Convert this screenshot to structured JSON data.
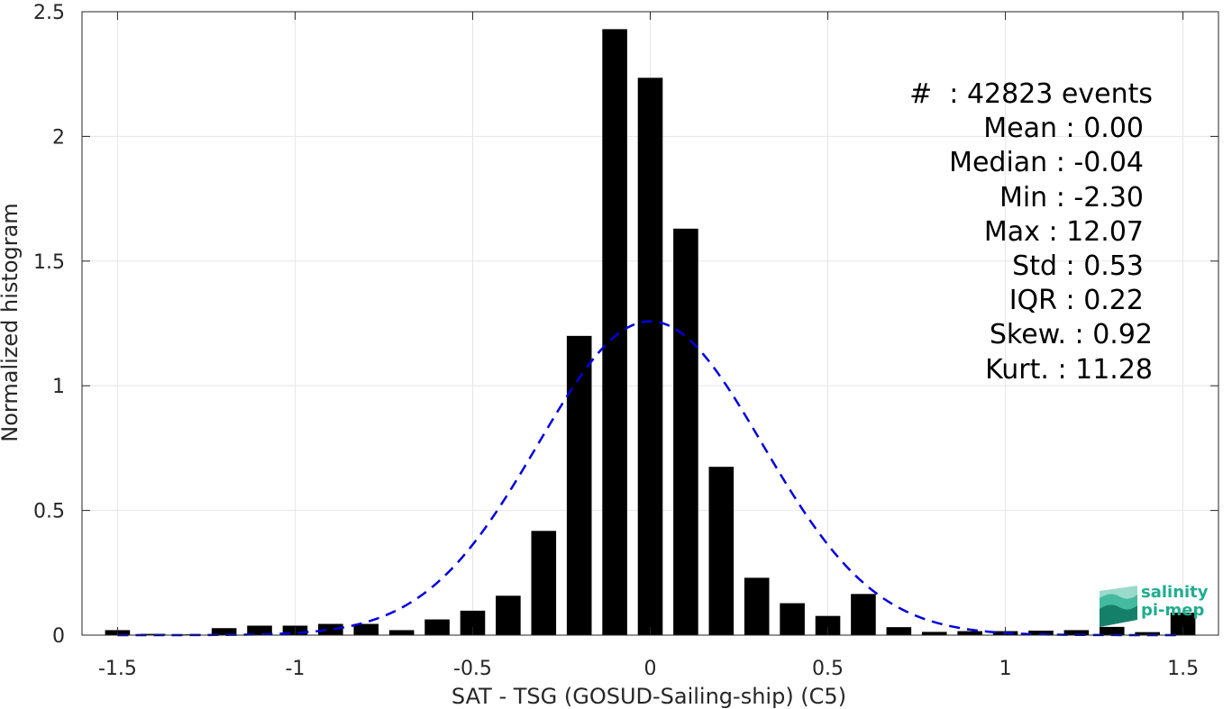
{
  "chart_data": {
    "type": "bar",
    "xlabel": "SAT - TSG (GOSUD-Sailing-ship) (C5)",
    "ylabel": "Normalized histogram",
    "xlim": [
      -1.6,
      1.6
    ],
    "ylim": [
      0,
      2.5
    ],
    "xticks": [
      -1.5,
      -1,
      -0.5,
      0,
      0.5,
      1,
      1.5
    ],
    "xtick_labels": [
      "-1.5",
      "-1",
      "-0.5",
      "0",
      "0.5",
      "1",
      "1.5"
    ],
    "yticks": [
      0,
      0.5,
      1,
      1.5,
      2,
      2.5
    ],
    "ytick_labels": [
      "0",
      "0.5",
      "1",
      "1.5",
      "2",
      "2.5"
    ],
    "grid": true,
    "bin_width": 0.1,
    "bar_color": "#000000",
    "fit_color": "#0000dd",
    "bins": [
      {
        "x": -1.5,
        "y": 0.02
      },
      {
        "x": -1.4,
        "y": 0.005
      },
      {
        "x": -1.3,
        "y": 0.003
      },
      {
        "x": -1.2,
        "y": 0.028
      },
      {
        "x": -1.1,
        "y": 0.038
      },
      {
        "x": -1.0,
        "y": 0.038
      },
      {
        "x": -0.9,
        "y": 0.045
      },
      {
        "x": -0.8,
        "y": 0.045
      },
      {
        "x": -0.7,
        "y": 0.02
      },
      {
        "x": -0.6,
        "y": 0.063
      },
      {
        "x": -0.5,
        "y": 0.098
      },
      {
        "x": -0.4,
        "y": 0.158
      },
      {
        "x": -0.3,
        "y": 0.418
      },
      {
        "x": -0.2,
        "y": 1.2
      },
      {
        "x": -0.1,
        "y": 2.43
      },
      {
        "x": 0.0,
        "y": 2.235
      },
      {
        "x": 0.1,
        "y": 1.63
      },
      {
        "x": 0.2,
        "y": 0.675
      },
      {
        "x": 0.3,
        "y": 0.23
      },
      {
        "x": 0.4,
        "y": 0.128
      },
      {
        "x": 0.5,
        "y": 0.077
      },
      {
        "x": 0.6,
        "y": 0.165
      },
      {
        "x": 0.7,
        "y": 0.032
      },
      {
        "x": 0.8,
        "y": 0.013
      },
      {
        "x": 0.9,
        "y": 0.016
      },
      {
        "x": 1.0,
        "y": 0.016
      },
      {
        "x": 1.1,
        "y": 0.018
      },
      {
        "x": 1.2,
        "y": 0.02
      },
      {
        "x": 1.3,
        "y": 0.033
      },
      {
        "x": 1.4,
        "y": 0.012
      },
      {
        "x": 1.5,
        "y": 0.09
      }
    ],
    "fit": {
      "type": "gaussian",
      "mean": 0.0,
      "std": 0.317,
      "style": "dashed"
    }
  },
  "stats": {
    "events": "#  : 42823 events",
    "mean": "Mean : 0.00",
    "median": "Median : -0.04",
    "min": "Min : -2.30",
    "max": "Max : 12.07",
    "std": "Std : 0.53",
    "iqr": "IQR : 0.22",
    "skew": "Skew. : 0.92",
    "kurt": "Kurt. : 11.28"
  },
  "logo": {
    "line1": "salinity",
    "line2": "pi-mep",
    "color": "#1fae8e"
  }
}
